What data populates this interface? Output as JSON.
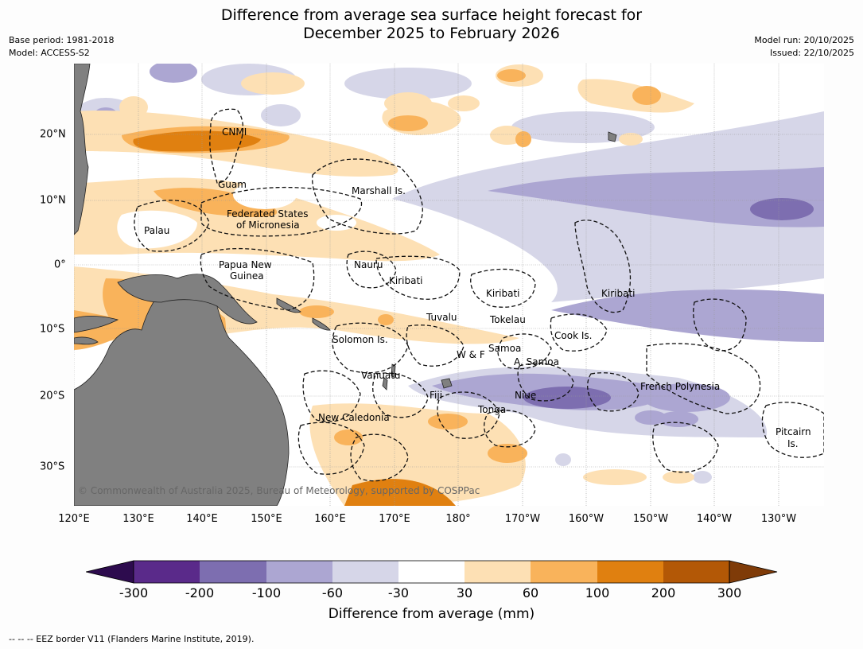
{
  "header": {
    "title_line1": "Difference from average sea surface height forecast for",
    "title_line2": "December 2025 to February 2026",
    "base_period": "Base period: 1981-2018",
    "model": "Model: ACCESS-S2",
    "model_run": "Model run: 20/10/2025",
    "issued": "Issued: 22/10/2025"
  },
  "map": {
    "lon_labels": [
      "120°E",
      "130°E",
      "140°E",
      "150°E",
      "160°E",
      "170°E",
      "180°",
      "170°W",
      "160°W",
      "150°W",
      "140°W",
      "130°W"
    ],
    "lat_labels": [
      "20°N",
      "10°N",
      "0°",
      "10°S",
      "20°S",
      "30°S"
    ],
    "place_labels": {
      "cnmi": "CNMI",
      "guam": "Guam",
      "marshall": "Marshall Is.",
      "fsm1": "Federated States",
      "fsm2": "of Micronesia",
      "palau": "Palau",
      "png1": "Papua New",
      "png2": "Guinea",
      "nauru": "Nauru",
      "kiribati_w": "Kiribati",
      "kiribati_c": "Kiribati",
      "kiribati_e": "Kiribati",
      "tuvalu": "Tuvalu",
      "tokelau": "Tokelau",
      "cook": "Cook Is.",
      "solomon": "Solomon Is.",
      "samoa": "Samoa",
      "wf": "W & F",
      "asamoa": "A. Samoa",
      "vanuatu": "Vanuatu",
      "fiji": "Fiji",
      "niue": "Niue",
      "tonga": "Tonga",
      "frenchpoly": "French Polynesia",
      "newcal": "New Caledonia",
      "pitcairn1": "Pitcairn",
      "pitcairn2": "Is."
    },
    "copyright": "© Commonwealth of Australia 2025, Bureau of Meteorology, supported by COSPPac",
    "colors": {
      "land": "#808080",
      "n300": "#2d0b4e",
      "n200": "#5a2a8a",
      "n100": "#7d6eb0",
      "n60": "#aca6d2",
      "n30": "#d6d6e8",
      "neutral": "#ffffff",
      "p30": "#fde0b4",
      "p60": "#f9b35b",
      "p100": "#e08010",
      "p200": "#b35806",
      "p300": "#7f3b08"
    }
  },
  "colorbar": {
    "tick_labels": [
      "-300",
      "-200",
      "-100",
      "-60",
      "-30",
      "30",
      "60",
      "100",
      "200",
      "300"
    ],
    "title": "Difference from average (mm)"
  },
  "footnote": "--  --  -- EEZ border V11 (Flanders Marine Institute, 2019)."
}
